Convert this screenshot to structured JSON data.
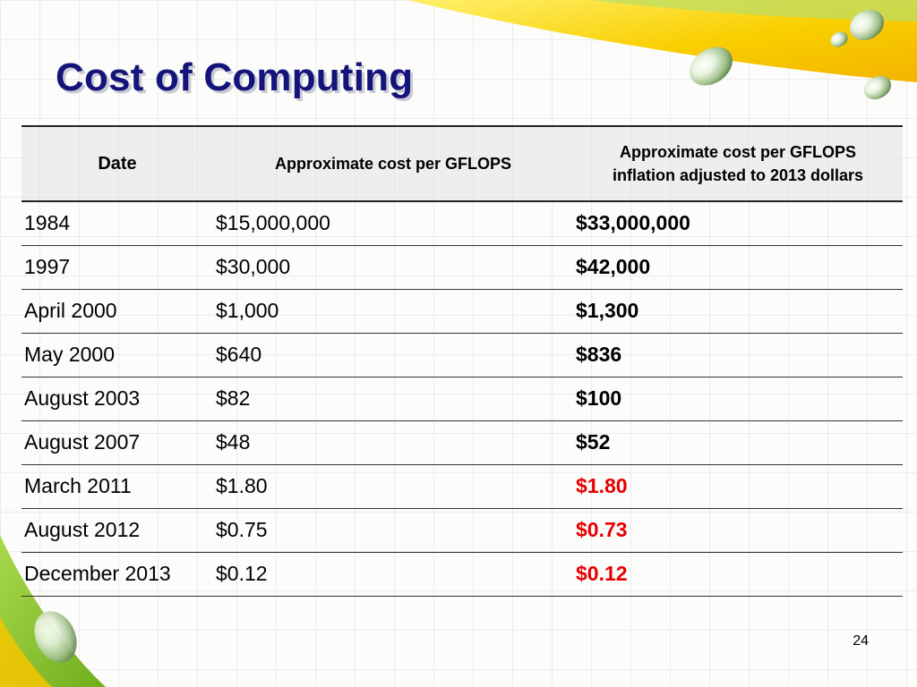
{
  "slide": {
    "title": "Cost of Computing",
    "page_number": "24"
  },
  "table": {
    "headers": {
      "date": "Date",
      "cost": "Approximate cost per GFLOPS",
      "adjusted_line1": "Approximate cost per GFLOPS",
      "adjusted_line2": "inflation adjusted to 2013 dollars"
    },
    "rows": [
      {
        "date": "1984",
        "cost": "$15,000,000",
        "adjusted": "$33,000,000",
        "adjusted_color": "#000000"
      },
      {
        "date": "1997",
        "cost": "$30,000",
        "adjusted": "$42,000",
        "adjusted_color": "#000000"
      },
      {
        "date": "April 2000",
        "cost": "$1,000",
        "adjusted": "$1,300",
        "adjusted_color": "#000000"
      },
      {
        "date": "May 2000",
        "cost": "$640",
        "adjusted": "$836",
        "adjusted_color": "#000000"
      },
      {
        "date": "August 2003",
        "cost": "$82",
        "adjusted": "$100",
        "adjusted_color": "#000000"
      },
      {
        "date": "August 2007",
        "cost": "$48",
        "adjusted": "$52",
        "adjusted_color": "#000000"
      },
      {
        "date": "March 2011",
        "cost": "$1.80",
        "adjusted": "$1.80",
        "adjusted_color": "#e60000"
      },
      {
        "date": "August 2012",
        "cost": "$0.75",
        "adjusted": "$0.73",
        "adjusted_color": "#e60000"
      },
      {
        "date": "December 2013",
        "cost": "$0.12",
        "adjusted": "$0.12",
        "adjusted_color": "#e60000"
      }
    ]
  },
  "theme": {
    "title_color": "#14147a",
    "accent_green": "#8cc63f",
    "accent_yellow": "#f7c600",
    "highlight_red": "#e60000"
  }
}
